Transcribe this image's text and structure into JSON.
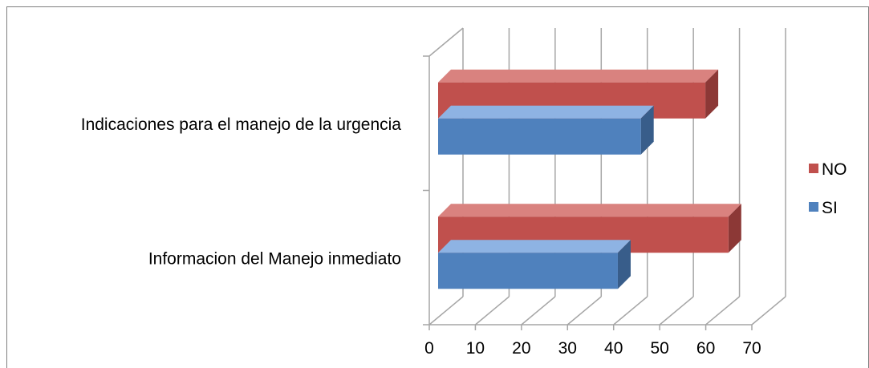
{
  "chart_data": {
    "type": "bar",
    "orientation": "horizontal",
    "style": "3d-clustered",
    "categories": [
      "Informacion del Manejo inmediato",
      "Indicaciones para el manejo de la urgencia"
    ],
    "series": [
      {
        "name": "SI",
        "values": [
          39,
          44
        ],
        "color": "#4F81BD",
        "side_color": "#385D8A",
        "top_color": "#8EB3E3"
      },
      {
        "name": "NO",
        "values": [
          63,
          58
        ],
        "color": "#C0504D",
        "side_color": "#8C3836",
        "top_color": "#D9827F"
      }
    ],
    "xticks": [
      "0",
      "10",
      "20",
      "30",
      "40",
      "50",
      "60",
      "70"
    ],
    "xlim": [
      0,
      70
    ],
    "xlabel": "",
    "ylabel": "",
    "title": "",
    "grid": true,
    "legend": {
      "position": "right",
      "order": [
        "NO",
        "SI"
      ]
    },
    "colors": {
      "grid": "#A6A6A6",
      "frame": "#7F7F7F"
    }
  }
}
